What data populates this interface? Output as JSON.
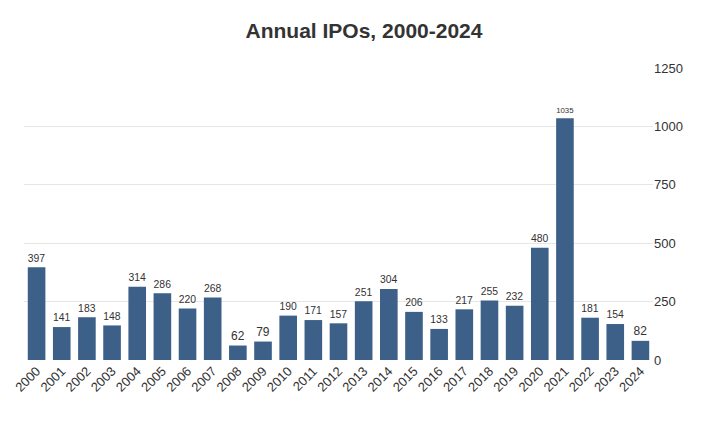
{
  "chart_data": {
    "type": "bar",
    "title": "Annual IPOs, 2000-2024",
    "categories": [
      "2000",
      "2001",
      "2002",
      "2003",
      "2004",
      "2005",
      "2006",
      "2007",
      "2008",
      "2009",
      "2010",
      "2011",
      "2012",
      "2013",
      "2014",
      "2015",
      "2016",
      "2017",
      "2018",
      "2019",
      "2020",
      "2021",
      "2022",
      "2023",
      "2024"
    ],
    "values": [
      397,
      141,
      183,
      148,
      314,
      286,
      220,
      268,
      62,
      79,
      190,
      171,
      157,
      251,
      304,
      206,
      133,
      217,
      255,
      232,
      480,
      1035,
      181,
      154,
      82
    ],
    "color": "#3d6089",
    "ylim": [
      0,
      1250
    ],
    "yticks": [
      0,
      250,
      500,
      750,
      1000,
      1250
    ],
    "grid": true,
    "data_labels": true
  }
}
